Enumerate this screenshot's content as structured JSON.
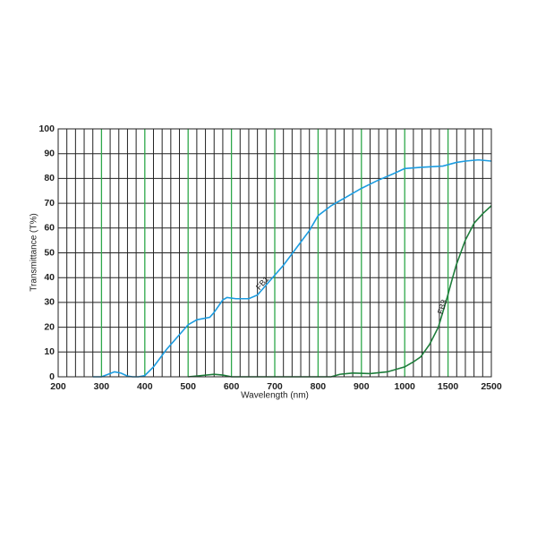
{
  "chart_data": {
    "type": "line",
    "xlabel": "Wavelength (nm)",
    "ylabel": "Transmittance (T%)",
    "xscale": "piecewise",
    "xlim": [
      200,
      2500
    ],
    "xticks": [
      200,
      300,
      400,
      500,
      600,
      700,
      800,
      900,
      1000,
      1500,
      2500
    ],
    "ylim": [
      0,
      100
    ],
    "yticks": [
      0,
      10,
      20,
      30,
      40,
      50,
      60,
      70,
      80,
      90,
      100
    ],
    "grid": true,
    "series": [
      {
        "name": "FB1",
        "color": "#1c9ce0",
        "x": [
          280,
          300,
          315,
          330,
          345,
          360,
          372,
          385,
          400,
          420,
          450,
          480,
          500,
          520,
          550,
          560,
          580,
          590,
          610,
          640,
          660,
          685,
          720,
          750,
          780,
          800,
          830,
          870,
          900,
          935,
          975,
          1000,
          1190,
          1440,
          1700,
          1900,
          2200,
          2500
        ],
        "values": [
          0,
          0,
          1,
          2,
          1.5,
          0.3,
          0,
          0,
          0.5,
          4,
          11,
          17,
          21,
          23,
          24,
          26,
          31,
          32,
          31.5,
          31.5,
          33,
          38,
          45,
          52,
          59,
          65,
          69,
          73,
          76,
          79,
          82,
          84,
          84.5,
          85,
          86.5,
          87,
          87.5,
          87
        ]
      },
      {
        "name": "FB3",
        "color": "#1e7d3b",
        "x": [
          500,
          530,
          560,
          580,
          600,
          830,
          850,
          880,
          920,
          960,
          1000,
          1100,
          1184,
          1286,
          1388,
          1490,
          1590,
          1688,
          1896,
          2104,
          2313,
          2500
        ],
        "values": [
          0,
          0.5,
          1,
          0.7,
          0,
          0,
          1,
          1.5,
          1.3,
          2,
          4,
          6,
          8,
          13,
          20,
          32,
          39,
          45,
          55,
          62,
          66,
          69
        ]
      }
    ]
  }
}
